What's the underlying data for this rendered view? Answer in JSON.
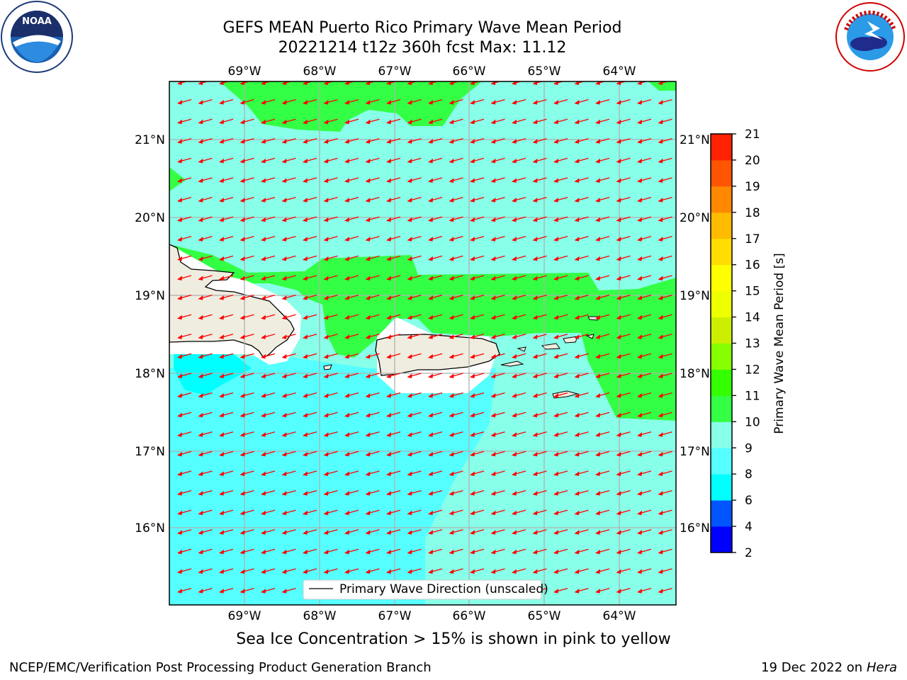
{
  "title_line1": "GEFS MEAN Puerto Rico Primary Wave Mean Period",
  "title_line2": "20221214 t12z 360h fcst   Max: 11.12",
  "subtitle": "Sea Ice Concentration > 15% is shown in pink to yellow",
  "footer_left": "NCEP/EMC/Verification Post Processing Product Generation Branch",
  "footer_right_date": "19 Dec 2022 on",
  "footer_right_machine": "Hera",
  "logos": {
    "noaa_text": "NOAA",
    "noaa_ring_text": "NATIONAL OCEANIC AND ATMOSPHERIC ADMINISTRATION · U.S. DEPARTMENT OF COMMERCE",
    "nws_ring_text": "NATIONAL WEATHER SERVICE"
  },
  "map": {
    "lon_ticks": [
      "69°W",
      "68°W",
      "67°W",
      "66°W",
      "65°W",
      "64°W"
    ],
    "lat_ticks": [
      "21°N",
      "20°N",
      "19°N",
      "18°N",
      "17°N",
      "16°N"
    ],
    "legend_label": "Primary Wave Direction (unscaled)",
    "arrow_color": "#ff0000",
    "land_color": "#efeddf"
  },
  "colorbar": {
    "label": "Primary Wave Mean Period [s]",
    "ticks": [
      "2",
      "4",
      "6",
      "8",
      "9",
      "10",
      "11",
      "12",
      "13",
      "14",
      "15",
      "16",
      "17",
      "18",
      "19",
      "20",
      "21"
    ],
    "colors": [
      "#0000ff",
      "#0055ff",
      "#00ffff",
      "#55ffff",
      "#88ffe8",
      "#33ff44",
      "#33ff00",
      "#88ff00",
      "#ccee00",
      "#eeff00",
      "#ffff00",
      "#ffdd00",
      "#ffbb00",
      "#ff8800",
      "#ff5500",
      "#ff2200",
      "#ff0000"
    ]
  },
  "chart_data": {
    "type": "heatmap",
    "title": "GEFS MEAN Puerto Rico Primary Wave Mean Period",
    "subtitle": "20221214 t12z 360h fcst   Max: 11.12",
    "field": "Primary Wave Mean Period [s]",
    "max": 11.12,
    "xlim": [
      "70°W",
      "63.3°W"
    ],
    "ylim": [
      "15°N",
      "21.7°N"
    ],
    "colorbar_levels": [
      2,
      4,
      6,
      8,
      9,
      10,
      11,
      12,
      13,
      14,
      15,
      16,
      17,
      18,
      19,
      20,
      21
    ],
    "regions_by_period_band": [
      {
        "band": "10-11",
        "areas": [
          "north of 21.3°N patches",
          "band along 18.5-19.3°N north of Puerto Rico",
          "east of Puerto Rico near 64°W (17.5-19°N)"
        ]
      },
      {
        "band": "9-10",
        "areas": [
          "most of the northern waters",
          "southeastern Caribbean"
        ]
      },
      {
        "band": "8-9",
        "areas": [
          "southwestern Caribbean south of Hispaniola"
        ]
      },
      {
        "band": "6-8",
        "areas": [
          "small patch near 69.5°W 18°N"
        ]
      }
    ],
    "vectors": "Primary wave direction arrows pointing toward the west-southwest across the domain"
  }
}
